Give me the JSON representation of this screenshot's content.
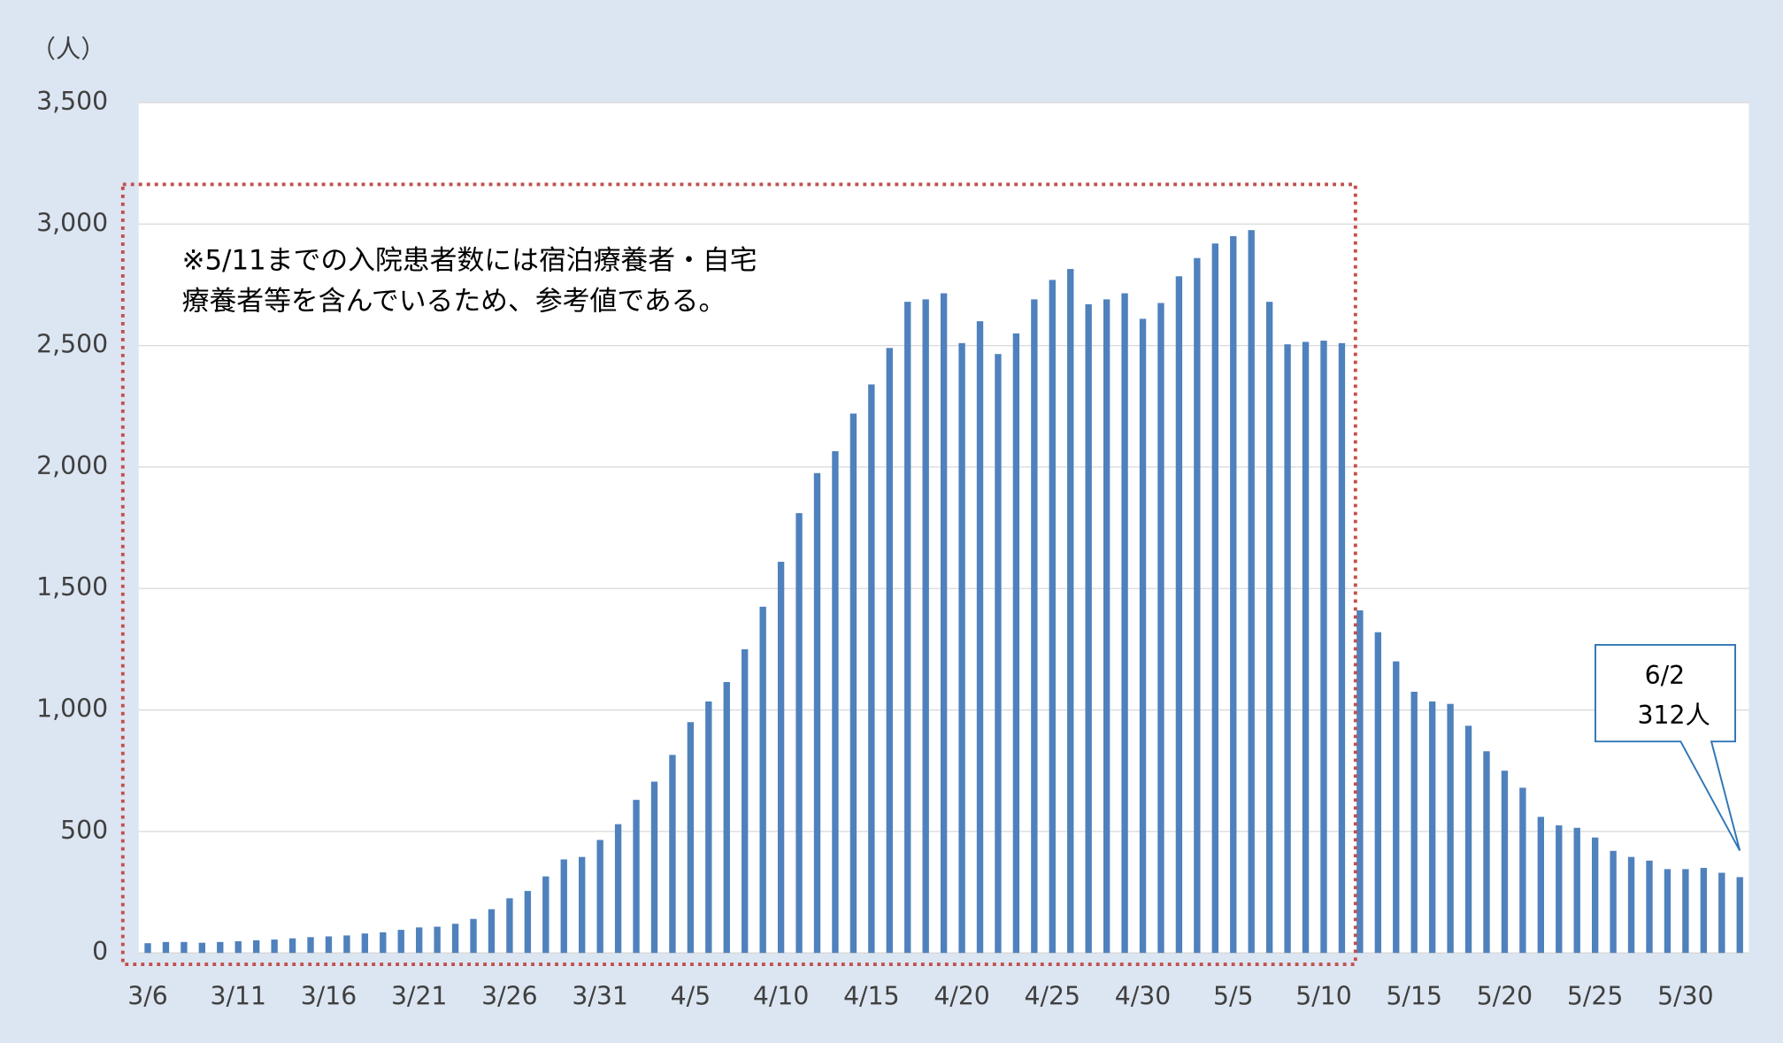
{
  "chart_data": {
    "type": "bar",
    "y_axis_label": "（人）",
    "note": [
      "※5/11までの入院患者数には宿泊療養者・自宅療養者等を含んでいるため、参考値である。"
    ],
    "note_lines": [
      "※5/11までの入院患者数には宿泊療養者・自宅",
      "療養者等を含んでいるため、参考値である。"
    ],
    "callout": [
      "6/2",
      "312人"
    ],
    "color": "#4f81bd",
    "grid": true,
    "ylim": [
      0,
      3500
    ],
    "yticks": [
      0,
      500,
      {
        "value": 1000,
        "label": "1,000"
      },
      {
        "value": 1500,
        "label": "1,500"
      },
      {
        "value": 2000,
        "label": "2,000"
      },
      {
        "value": 2500,
        "label": "2,500"
      },
      {
        "value": 3000,
        "label": "3,000"
      },
      {
        "value": 3500,
        "label": "3,500"
      }
    ],
    "categories": [
      "3/6",
      null,
      null,
      null,
      null,
      "3/11",
      null,
      null,
      null,
      null,
      "3/16",
      null,
      null,
      null,
      null,
      "3/21",
      null,
      null,
      null,
      null,
      "3/26",
      null,
      null,
      null,
      null,
      "3/31",
      null,
      null,
      null,
      null,
      "4/5",
      null,
      null,
      null,
      null,
      "4/10",
      null,
      null,
      null,
      null,
      "4/15",
      null,
      null,
      null,
      null,
      "4/20",
      null,
      null,
      null,
      null,
      "4/25",
      null,
      null,
      null,
      null,
      "4/30",
      null,
      null,
      null,
      null,
      "5/5",
      null,
      null,
      null,
      null,
      "5/10",
      null,
      null,
      null,
      null,
      "5/15",
      null,
      null,
      null,
      null,
      "5/20",
      null,
      null,
      null,
      null,
      "5/25",
      null,
      null,
      null,
      null,
      "5/30",
      null,
      null,
      null
    ],
    "values": [
      40,
      45,
      45,
      42,
      45,
      48,
      52,
      55,
      60,
      65,
      68,
      72,
      80,
      85,
      95,
      105,
      108,
      120,
      140,
      180,
      225,
      255,
      315,
      385,
      395,
      465,
      530,
      630,
      705,
      815,
      950,
      1035,
      1115,
      1250,
      1425,
      1610,
      1810,
      1975,
      2065,
      2220,
      2340,
      2490,
      2680,
      2690,
      2715,
      2510,
      2600,
      2465,
      2550,
      2690,
      2770,
      2815,
      2670,
      2690,
      2715,
      2610,
      2675,
      2785,
      2860,
      2920,
      2950,
      2975,
      2680,
      2505,
      2515,
      2520,
      2510,
      1410,
      1320,
      1200,
      1075,
      1035,
      1025,
      935,
      830,
      750,
      680,
      560,
      525,
      515,
      475,
      420,
      395,
      380,
      345,
      345,
      350,
      330,
      312
    ]
  }
}
